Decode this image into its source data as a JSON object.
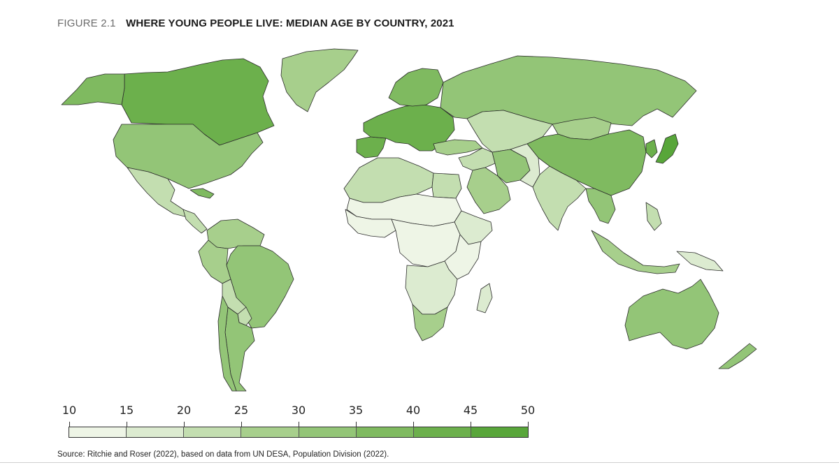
{
  "header": {
    "figure_label": "FIGURE 2.1",
    "title": "WHERE YOUNG PEOPLE LIVE: MEDIAN AGE BY COUNTRY, 2021"
  },
  "map": {
    "type": "choropleth",
    "projection": "world",
    "ocean_color": "#ffffff",
    "border_color": "#2b2b2b",
    "regions": [
      {
        "name": "Canada",
        "bin": 7
      },
      {
        "name": "Alaska (United States)",
        "bin": 6
      },
      {
        "name": "United States",
        "bin": 5
      },
      {
        "name": "Greenland",
        "bin": 4
      },
      {
        "name": "Mexico",
        "bin": 3
      },
      {
        "name": "Central America",
        "bin": 3
      },
      {
        "name": "Cuba",
        "bin": 6
      },
      {
        "name": "Colombia and Venezuela",
        "bin": 4
      },
      {
        "name": "Brazil",
        "bin": 5
      },
      {
        "name": "Peru",
        "bin": 4
      },
      {
        "name": "Bolivia",
        "bin": 3
      },
      {
        "name": "Paraguay",
        "bin": 3
      },
      {
        "name": "Argentina",
        "bin": 5
      },
      {
        "name": "Chile",
        "bin": 5
      },
      {
        "name": "Iberia",
        "bin": 7
      },
      {
        "name": "Western and Central Europe",
        "bin": 7
      },
      {
        "name": "Scandinavia",
        "bin": 6
      },
      {
        "name": "Russia",
        "bin": 5
      },
      {
        "name": "Kazakhstan and Central Asia",
        "bin": 3
      },
      {
        "name": "Mongolia",
        "bin": 4
      },
      {
        "name": "China",
        "bin": 6
      },
      {
        "name": "Japan",
        "bin": 8
      },
      {
        "name": "Korea",
        "bin": 7
      },
      {
        "name": "Turkey",
        "bin": 4
      },
      {
        "name": "Middle East",
        "bin": 3
      },
      {
        "name": "Arabian Peninsula",
        "bin": 4
      },
      {
        "name": "Iran",
        "bin": 5
      },
      {
        "name": "Afghanistan and Pakistan",
        "bin": 2
      },
      {
        "name": "India",
        "bin": 3
      },
      {
        "name": "Mainland Southeast Asia",
        "bin": 5
      },
      {
        "name": "Indonesia",
        "bin": 4
      },
      {
        "name": "Philippines",
        "bin": 3
      },
      {
        "name": "Papua New Guinea",
        "bin": 2
      },
      {
        "name": "Australia",
        "bin": 5
      },
      {
        "name": "New Zealand",
        "bin": 5
      },
      {
        "name": "North Africa",
        "bin": 3
      },
      {
        "name": "Egypt",
        "bin": 3
      },
      {
        "name": "Sahel",
        "bin": 1
      },
      {
        "name": "West Africa",
        "bin": 1
      },
      {
        "name": "Horn of Africa",
        "bin": 2
      },
      {
        "name": "Central Africa",
        "bin": 1
      },
      {
        "name": "East Africa",
        "bin": 1
      },
      {
        "name": "Southern Africa",
        "bin": 2
      },
      {
        "name": "South Africa",
        "bin": 4
      },
      {
        "name": "Madagascar",
        "bin": 2
      }
    ]
  },
  "legend": {
    "ticks": [
      "10",
      "15",
      "20",
      "25",
      "30",
      "35",
      "40",
      "45",
      "50"
    ],
    "bins": [
      {
        "range": [
          10,
          15
        ],
        "color": "#eef5e6"
      },
      {
        "range": [
          15,
          20
        ],
        "color": "#dcebd0"
      },
      {
        "range": [
          20,
          25
        ],
        "color": "#c3deb0"
      },
      {
        "range": [
          25,
          30
        ],
        "color": "#a7cf8c"
      },
      {
        "range": [
          30,
          35
        ],
        "color": "#93c577"
      },
      {
        "range": [
          35,
          40
        ],
        "color": "#7fba60"
      },
      {
        "range": [
          40,
          45
        ],
        "color": "#6cb04c"
      },
      {
        "range": [
          45,
          50
        ],
        "color": "#58a63a"
      }
    ]
  },
  "source": "Source: Ritchie and Roser (2022), based on data from UN DESA, Population Division (2022)."
}
